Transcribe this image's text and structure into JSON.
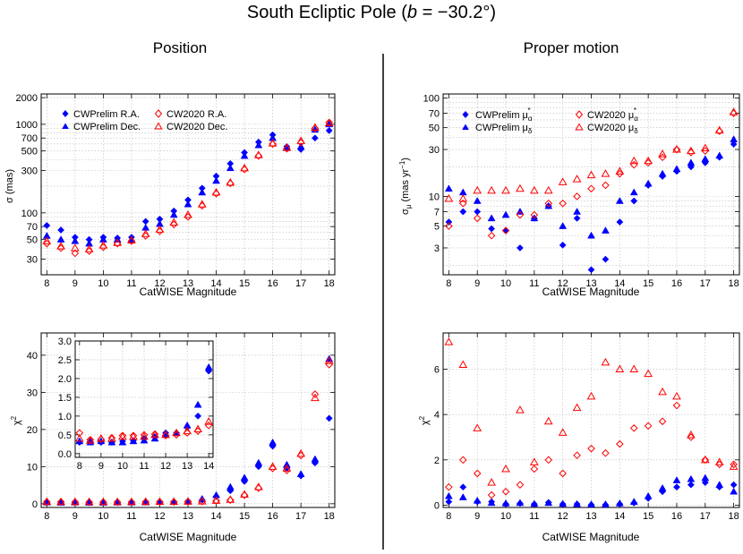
{
  "figure": {
    "title_prefix": "South Ecliptic Pole (",
    "title_b": "b",
    "title_suffix": " = −30.2°)",
    "divider_color": "#000000"
  },
  "colors": {
    "cwprelim": "#0000ff",
    "cw2020": "#ff0000"
  },
  "chart_data": [
    {
      "id": "pos_sigma",
      "type": "scatter",
      "title": "Position",
      "xlabel": "CatWISE Magnitude",
      "ylabel": "σ (mas)",
      "yscale": "log",
      "xlim": [
        7.8,
        18.2
      ],
      "ylim": [
        20,
        2200
      ],
      "xticks": [
        8,
        9,
        10,
        11,
        12,
        13,
        14,
        15,
        16,
        17,
        18
      ],
      "yticks": [
        30,
        50,
        70,
        100,
        300,
        500,
        700,
        1000,
        2000
      ],
      "ytick_labels": [
        "30",
        "50",
        "70",
        "100",
        "300",
        "500",
        "700",
        "1000",
        "2000"
      ],
      "legend": {
        "location": "top-left",
        "columns": 2,
        "entries": [
          "CWPrelim R.A.",
          "CWPrelim Dec.",
          "CW2020 R.A.",
          "CW2020 Dec."
        ]
      },
      "x": [
        8,
        8.5,
        9,
        9.5,
        10,
        10.5,
        11,
        11.5,
        12,
        12.5,
        13,
        13.5,
        14,
        14.5,
        15,
        15.5,
        16,
        16.5,
        17,
        17.5,
        18
      ],
      "series": [
        {
          "name": "CWPrelim R.A.",
          "marker": "diamond-filled",
          "color": "#0000ff",
          "values": [
            72,
            64,
            53,
            50,
            53,
            52,
            53,
            80,
            85,
            105,
            140,
            190,
            260,
            360,
            480,
            630,
            760,
            560,
            520,
            700,
            850
          ]
        },
        {
          "name": "CWPrelim Dec.",
          "marker": "triangle-filled",
          "color": "#0000ff",
          "values": [
            55,
            50,
            48,
            45,
            50,
            50,
            50,
            68,
            75,
            95,
            125,
            170,
            230,
            320,
            440,
            580,
            700,
            540,
            560,
            870,
            1000
          ]
        },
        {
          "name": "CW2020 R.A.",
          "marker": "diamond-open",
          "color": "#ff0000",
          "values": [
            45,
            40,
            35,
            37,
            41,
            45,
            48,
            55,
            62,
            74,
            90,
            120,
            165,
            215,
            310,
            440,
            600,
            530,
            620,
            900,
            1050
          ]
        },
        {
          "name": "CW2020 Dec.",
          "marker": "triangle-open",
          "color": "#ff0000",
          "values": [
            48,
            42,
            40,
            39,
            43,
            46,
            49,
            58,
            65,
            78,
            95,
            125,
            170,
            220,
            320,
            450,
            610,
            545,
            650,
            920,
            1030
          ]
        }
      ]
    },
    {
      "id": "pm_sigma",
      "type": "scatter",
      "title": "Proper motion",
      "xlabel": "CatWISE Magnitude",
      "ylabel_main": "σ",
      "ylabel_sub": "μ",
      "ylabel_rest": " (mas yr",
      "ylabel_sup": "−1",
      "ylabel_end": ")",
      "yscale": "log",
      "xlim": [
        7.8,
        18.2
      ],
      "ylim": [
        1.6,
        110
      ],
      "xticks": [
        8,
        9,
        10,
        11,
        12,
        13,
        14,
        15,
        16,
        17,
        18
      ],
      "yticks": [
        3,
        5,
        7,
        10,
        30,
        50,
        70,
        100
      ],
      "ytick_labels": [
        "3",
        "5",
        "7",
        "10",
        "30",
        "50",
        "70",
        "100"
      ],
      "legend": {
        "location": "top",
        "columns": 2,
        "entries": [
          {
            "base": "CWPrelim μ",
            "sub": "α",
            "sup": "*"
          },
          {
            "base": "CWPrelim μ",
            "sub": "δ",
            "sup": ""
          },
          {
            "base": "CW2020 μ",
            "sub": "α",
            "sup": "*"
          },
          {
            "base": "CW2020 μ",
            "sub": "δ",
            "sup": ""
          }
        ]
      },
      "x": [
        8,
        8.5,
        9,
        9.5,
        10,
        10.5,
        11,
        11.5,
        12,
        12.5,
        13,
        13.5,
        14,
        14.5,
        15,
        15.5,
        16,
        16.5,
        17,
        17.5,
        18
      ],
      "series": [
        {
          "name": "CWPrelim μα*",
          "marker": "diamond-filled",
          "color": "#0000ff",
          "values": [
            5.5,
            7,
            7,
            4.7,
            4.5,
            3,
            6,
            8,
            3.2,
            6,
            1.8,
            2.3,
            5.5,
            9,
            13,
            16,
            18,
            20,
            22,
            25,
            34
          ]
        },
        {
          "name": "CWPrelim μδ",
          "marker": "triangle-filled",
          "color": "#0000ff",
          "values": [
            12,
            11,
            9,
            6,
            6.5,
            7,
            6,
            8,
            5,
            7,
            4,
            4.5,
            9,
            11,
            13.5,
            17,
            19,
            22,
            24,
            26,
            38
          ]
        },
        {
          "name": "CW2020 μα*",
          "marker": "diamond-open",
          "color": "#ff0000",
          "values": [
            5,
            8.5,
            6,
            4,
            4.5,
            6.5,
            6.5,
            8.5,
            8.5,
            10,
            12,
            13,
            17,
            21,
            22,
            25,
            30,
            28,
            29,
            46,
            70
          ]
        },
        {
          "name": "CW2020 μδ",
          "marker": "triangle-open",
          "color": "#ff0000",
          "values": [
            9.5,
            9.5,
            11.5,
            11.5,
            11.5,
            12,
            11.5,
            11.5,
            14,
            15,
            16.5,
            17,
            18,
            23,
            23,
            27,
            30,
            29,
            31,
            47,
            72
          ]
        }
      ]
    },
    {
      "id": "pos_chi2",
      "type": "scatter",
      "xlabel": "CatWISE Magnitude",
      "ylabel": "χ",
      "ylabel_sup": "2",
      "yscale": "linear",
      "xlim": [
        7.8,
        18.2
      ],
      "ylim": [
        -1,
        46
      ],
      "xticks": [
        8,
        9,
        10,
        11,
        12,
        13,
        14,
        15,
        16,
        17,
        18
      ],
      "yticks": [
        0,
        10,
        20,
        30,
        40
      ],
      "x": [
        8,
        8.5,
        9,
        9.5,
        10,
        10.5,
        11,
        11.5,
        12,
        12.5,
        13,
        13.5,
        14,
        14.5,
        15,
        15.5,
        16,
        16.5,
        17,
        17.5,
        18
      ],
      "series": [
        {
          "name": "CWPrelim R.A.",
          "marker": "diamond-filled",
          "color": "#0000ff",
          "values": [
            0.3,
            0.35,
            0.3,
            0.3,
            0.35,
            0.35,
            0.4,
            0.45,
            0.55,
            0.6,
            0.7,
            1.0,
            2.0,
            3.5,
            6.0,
            10.0,
            15.5,
            9.5,
            7.5,
            11.0,
            23.0
          ]
        },
        {
          "name": "CWPrelim Dec.",
          "marker": "triangle-filled",
          "color": "#0000ff",
          "values": [
            0.35,
            0.3,
            0.35,
            0.3,
            0.3,
            0.35,
            0.35,
            0.4,
            0.5,
            0.55,
            0.65,
            1.3,
            2.3,
            4.5,
            7.0,
            11.0,
            16.5,
            10.5,
            8.0,
            12.0,
            39.0
          ]
        },
        {
          "name": "CW2020 R.A.",
          "marker": "diamond-open",
          "color": "#ff0000",
          "values": [
            0.5,
            0.5,
            0.45,
            0.45,
            0.45,
            0.45,
            0.45,
            0.5,
            0.5,
            0.5,
            0.55,
            0.6,
            0.8,
            1.0,
            2.3,
            4.2,
            9.5,
            9.0,
            13.0,
            29.5,
            37.5
          ]
        },
        {
          "name": "CW2020 Dec.",
          "marker": "triangle-open",
          "color": "#ff0000",
          "values": [
            0.55,
            0.5,
            0.5,
            0.5,
            0.5,
            0.5,
            0.5,
            0.55,
            0.55,
            0.55,
            0.6,
            0.65,
            0.85,
            1.1,
            2.5,
            4.5,
            10.0,
            9.5,
            13.5,
            28.5,
            38.5
          ]
        }
      ]
    },
    {
      "id": "pos_chi2_inset",
      "type": "scatter",
      "xlim": [
        7.8,
        14.2
      ],
      "ylim": [
        -0.1,
        3.0
      ],
      "xticks": [
        8,
        9,
        10,
        11,
        12,
        13,
        14
      ],
      "yticks": [
        0.0,
        0.5,
        1.0,
        1.5,
        2.0,
        2.5,
        3.0
      ],
      "ytick_labels": [
        "0.0",
        "0.5",
        "1.0",
        "1.5",
        "2.0",
        "2.5",
        "3.0"
      ],
      "x": [
        8,
        8.5,
        9,
        9.5,
        10,
        10.5,
        11,
        11.5,
        12,
        12.5,
        13,
        13.5,
        14
      ],
      "series": [
        {
          "name": "CWPrelim R.A.",
          "marker": "diamond-filled",
          "color": "#0000ff",
          "values": [
            0.3,
            0.32,
            0.3,
            0.3,
            0.33,
            0.35,
            0.4,
            0.45,
            0.55,
            0.55,
            0.7,
            1.0,
            2.2
          ]
        },
        {
          "name": "CWPrelim Dec.",
          "marker": "triangle-filled",
          "color": "#0000ff",
          "values": [
            0.33,
            0.3,
            0.33,
            0.3,
            0.3,
            0.33,
            0.35,
            0.4,
            0.5,
            0.55,
            0.75,
            1.3,
            2.3
          ]
        },
        {
          "name": "CW2020 R.A.",
          "marker": "diamond-open",
          "color": "#ff0000",
          "values": [
            0.55,
            0.37,
            0.38,
            0.42,
            0.48,
            0.48,
            0.5,
            0.52,
            0.48,
            0.5,
            0.55,
            0.6,
            0.75
          ]
        },
        {
          "name": "CW2020 Dec.",
          "marker": "triangle-open",
          "color": "#ff0000",
          "values": [
            0.4,
            0.35,
            0.4,
            0.4,
            0.45,
            0.45,
            0.45,
            0.5,
            0.5,
            0.55,
            0.6,
            0.65,
            0.85
          ]
        }
      ]
    },
    {
      "id": "pm_chi2",
      "type": "scatter",
      "xlabel": "CatWISE Magnitude",
      "ylabel": "χ",
      "ylabel_sup": "2",
      "yscale": "linear",
      "xlim": [
        7.8,
        18.2
      ],
      "ylim": [
        -0.1,
        7.6
      ],
      "xticks": [
        8,
        9,
        10,
        11,
        12,
        13,
        14,
        15,
        16,
        17,
        18
      ],
      "yticks": [
        0,
        2,
        4,
        6
      ],
      "x": [
        8,
        8.5,
        9,
        9.5,
        10,
        10.5,
        11,
        11.5,
        12,
        12.5,
        13,
        13.5,
        14,
        14.5,
        15,
        15.5,
        16,
        16.5,
        17,
        17.5,
        18
      ],
      "series": [
        {
          "name": "CWPrelim μα*",
          "marker": "diamond-filled",
          "color": "#0000ff",
          "values": [
            0.15,
            0.8,
            0.15,
            0.15,
            0.05,
            0.08,
            0.05,
            0.12,
            0.05,
            0.05,
            0.02,
            0.02,
            0.05,
            0.1,
            0.3,
            0.6,
            0.8,
            0.9,
            1.0,
            0.8,
            0.9
          ]
        },
        {
          "name": "CWPrelim μδ",
          "marker": "triangle-filled",
          "color": "#0000ff",
          "values": [
            0.4,
            0.35,
            0.2,
            0.1,
            0.08,
            0.1,
            0.06,
            0.1,
            0.06,
            0.05,
            0.04,
            0.04,
            0.08,
            0.15,
            0.4,
            0.75,
            1.1,
            1.15,
            1.2,
            0.9,
            0.6
          ]
        },
        {
          "name": "CW2020 μα*",
          "marker": "diamond-open",
          "color": "#ff0000",
          "values": [
            0.8,
            2.0,
            1.4,
            0.45,
            0.6,
            0.9,
            1.6,
            2.0,
            1.4,
            2.2,
            2.5,
            2.3,
            2.7,
            3.4,
            3.5,
            3.7,
            4.4,
            3.0,
            2.0,
            1.8,
            1.8
          ]
        },
        {
          "name": "CW2020 μδ",
          "marker": "triangle-open",
          "color": "#ff0000",
          "values": [
            7.2,
            6.2,
            3.4,
            1.0,
            1.6,
            4.2,
            1.9,
            3.7,
            3.2,
            4.3,
            4.8,
            6.3,
            6.0,
            6.0,
            5.8,
            5.0,
            4.8,
            3.1,
            2.0,
            1.9,
            1.7
          ]
        }
      ]
    }
  ]
}
